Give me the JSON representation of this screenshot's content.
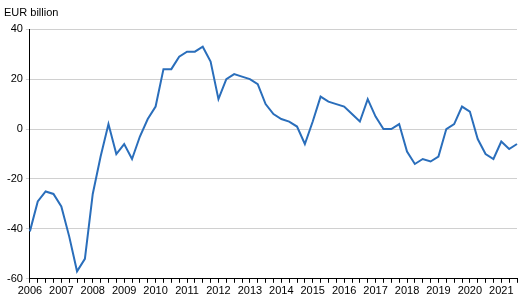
{
  "chart_data": {
    "type": "line",
    "y_label": "EUR billion",
    "categories": [
      "2006",
      null,
      null,
      null,
      "2007",
      null,
      null,
      null,
      "2008",
      null,
      null,
      null,
      "2009",
      null,
      null,
      null,
      "2010",
      null,
      null,
      null,
      "2011",
      null,
      null,
      null,
      "2012",
      null,
      null,
      null,
      "2013",
      null,
      null,
      null,
      "2014",
      null,
      null,
      null,
      "2015",
      null,
      null,
      null,
      "2016",
      null,
      null,
      null,
      "2017",
      null,
      null,
      null,
      "2018",
      null,
      null,
      null,
      "2019",
      null,
      null,
      null,
      "2020",
      null,
      null,
      null,
      "2021",
      null,
      null
    ],
    "values": [
      -41,
      -29,
      -25,
      -26,
      -31,
      -43,
      -57,
      -52,
      -26,
      -11,
      2,
      -10,
      -6,
      -12,
      -3,
      4,
      9,
      24,
      24,
      29,
      31,
      31,
      33,
      27,
      12,
      20,
      22,
      21,
      20,
      18,
      10,
      6,
      4,
      3,
      1,
      -6,
      3,
      13,
      11,
      10,
      9,
      6,
      3,
      12,
      5,
      0,
      0,
      2,
      -9,
      -14,
      -12,
      -13,
      -11,
      0,
      2,
      9,
      7,
      -4,
      -10,
      -12,
      -5,
      -8,
      -6
    ],
    "color": "#2a6ebb",
    "ylim": [
      -60,
      40
    ],
    "yticks": [
      -60,
      -40,
      -20,
      0,
      20,
      40
    ],
    "grid": true
  }
}
